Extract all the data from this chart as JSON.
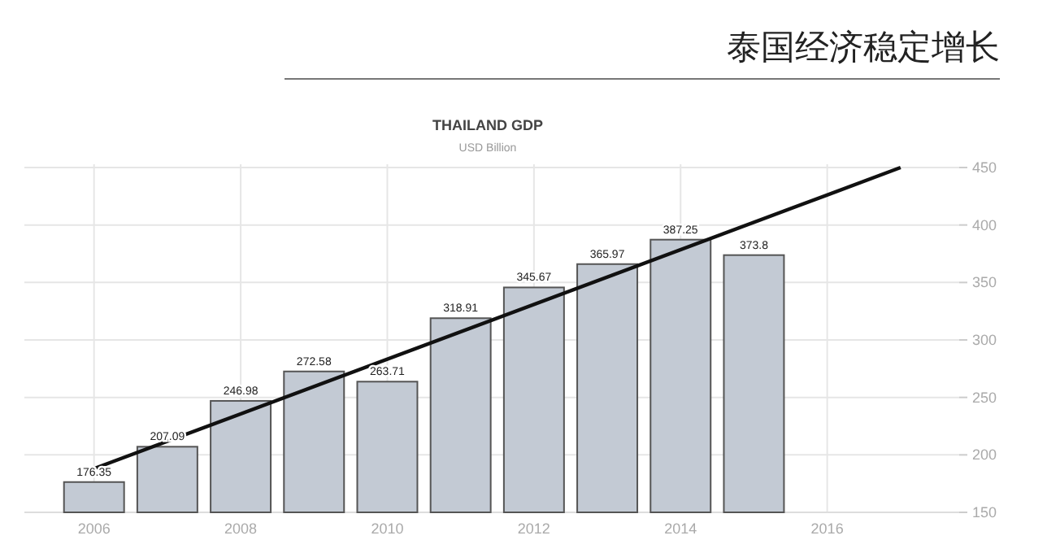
{
  "chart_data": {
    "type": "bar",
    "title": "THAILAND GDP",
    "subtitle": "USD Billion",
    "annotations": [
      "泰国经济稳定增长"
    ],
    "x": [
      2006,
      2007,
      2008,
      2009,
      2010,
      2011,
      2012,
      2013,
      2014,
      2015
    ],
    "series": [
      {
        "color": "#c3cad4",
        "values": [
          176.35,
          207.09,
          246.98,
          272.58,
          263.71,
          318.91,
          345.67,
          365.97,
          387.25,
          373.8
        ],
        "value_labels": [
          "176.35",
          "207.09",
          "246.98",
          "272.58",
          "263.71",
          "318.91",
          "345.67",
          "365.97",
          "387.25",
          "373.8"
        ]
      },
      {
        "type": "line",
        "color": "#111111",
        "x": [
          2006,
          2017
        ],
        "values": [
          188,
          450
        ]
      }
    ],
    "xlim": [
      2005.05,
      2017.8
    ],
    "ylim": [
      150,
      450
    ],
    "xticks": [
      2006,
      2008,
      2010,
      2012,
      2014,
      2016
    ],
    "yticks": [
      150,
      200,
      250,
      300,
      350,
      400,
      450
    ],
    "grid": true
  }
}
